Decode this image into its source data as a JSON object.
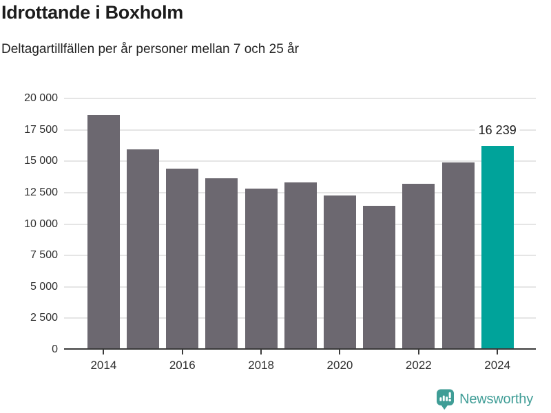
{
  "title": "Idrottande i Boxholm",
  "subtitle": "Deltagartillfällen per år personer mellan 7 och 25 år",
  "branding": {
    "logo_text": "Newsworthy",
    "logo_icon": "newsworthy-speech-bubble-chart-icon"
  },
  "colors": {
    "bar_default": "#6c6870",
    "bar_highlight": "#00a39a",
    "gridline": "#e5e5e5",
    "axis": "#3a3a3a",
    "tick_label": "#303030",
    "text": "#1c1c1c",
    "brand_teal": "#3f9d96"
  },
  "chart_data": {
    "type": "bar",
    "title": "Idrottande i Boxholm",
    "subtitle": "Deltagartillfällen per år personer mellan 7 och 25 år",
    "categories": [
      "2014",
      "2015",
      "2016",
      "2017",
      "2018",
      "2019",
      "2020",
      "2021",
      "2022",
      "2023",
      "2024"
    ],
    "values": [
      18700,
      15950,
      14400,
      13650,
      12800,
      13300,
      12300,
      11450,
      13200,
      14900,
      16239
    ],
    "highlight_index": 10,
    "annotation": {
      "text": "16 239",
      "category": "2024",
      "value": 16239
    },
    "ylim": [
      0,
      20000
    ],
    "grid": true,
    "legend_position": "none",
    "yticks": [
      {
        "value": 0,
        "label": "0"
      },
      {
        "value": 2500,
        "label": "2 500"
      },
      {
        "value": 5000,
        "label": "5 000"
      },
      {
        "value": 7500,
        "label": "7 500"
      },
      {
        "value": 10000,
        "label": "10 000"
      },
      {
        "value": 12500,
        "label": "12 500"
      },
      {
        "value": 15000,
        "label": "15 000"
      },
      {
        "value": 17500,
        "label": "17 500"
      },
      {
        "value": 20000,
        "label": "20 000"
      }
    ],
    "xticks": [
      {
        "index": 0,
        "label": "2014"
      },
      {
        "index": 2,
        "label": "2016"
      },
      {
        "index": 4,
        "label": "2018"
      },
      {
        "index": 6,
        "label": "2020"
      },
      {
        "index": 8,
        "label": "2022"
      },
      {
        "index": 10,
        "label": "2024"
      }
    ]
  }
}
